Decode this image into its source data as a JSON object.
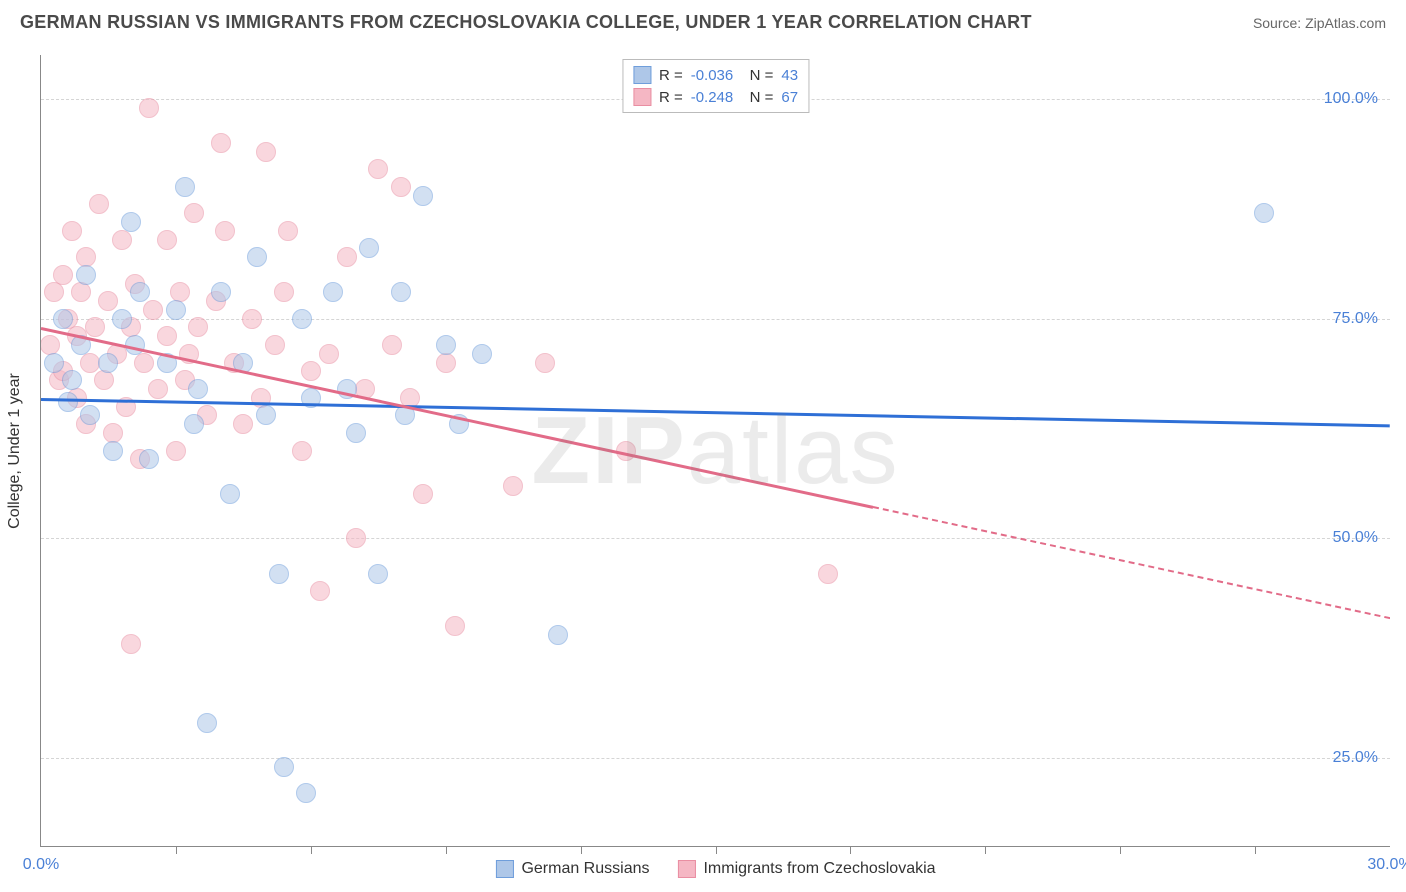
{
  "title": "GERMAN RUSSIAN VS IMMIGRANTS FROM CZECHOSLOVAKIA COLLEGE, UNDER 1 YEAR CORRELATION CHART",
  "source": "Source: ZipAtlas.com",
  "chart": {
    "type": "scatter",
    "watermark": "ZIPatlas",
    "background_color": "#ffffff",
    "grid_color": "#d5d5d5",
    "axis_color": "#888888",
    "tick_label_color": "#4a80d6",
    "y_axis_title": "College, Under 1 year",
    "xlim": [
      0,
      30
    ],
    "ylim": [
      15,
      105
    ],
    "x_ticks_major": [
      0,
      30
    ],
    "x_ticks_minor": [
      3,
      6,
      9,
      12,
      15,
      18,
      21,
      24,
      27
    ],
    "x_tick_labels": {
      "0": "0.0%",
      "30": "30.0%"
    },
    "y_gridlines": [
      25,
      50,
      75,
      100
    ],
    "y_tick_labels": {
      "25": "25.0%",
      "50": "50.0%",
      "75": "75.0%",
      "100": "100.0%"
    },
    "marker_radius": 10,
    "marker_opacity": 0.55,
    "series": [
      {
        "name": "German Russians",
        "fill_color": "#aec7e8",
        "stroke_color": "#6f9edb",
        "trend_color": "#2e6fd6",
        "R": "-0.036",
        "N": "43",
        "trend": {
          "x1": 0,
          "y1": 66,
          "x2": 30,
          "y2": 63,
          "solid_until_x": 30
        },
        "points": [
          [
            0.3,
            70
          ],
          [
            0.5,
            75
          ],
          [
            0.6,
            65.5
          ],
          [
            0.7,
            68
          ],
          [
            0.9,
            72
          ],
          [
            1.0,
            80
          ],
          [
            1.1,
            64
          ],
          [
            1.5,
            70
          ],
          [
            1.6,
            60
          ],
          [
            1.8,
            75
          ],
          [
            2.0,
            86
          ],
          [
            2.1,
            72
          ],
          [
            2.2,
            78
          ],
          [
            2.4,
            59
          ],
          [
            2.8,
            70
          ],
          [
            3.0,
            76
          ],
          [
            3.2,
            90
          ],
          [
            3.4,
            63
          ],
          [
            3.5,
            67
          ],
          [
            3.7,
            29
          ],
          [
            4.0,
            78
          ],
          [
            4.2,
            55
          ],
          [
            4.5,
            70
          ],
          [
            4.8,
            82
          ],
          [
            5.0,
            64
          ],
          [
            5.3,
            46
          ],
          [
            5.4,
            24
          ],
          [
            5.8,
            75
          ],
          [
            5.9,
            21
          ],
          [
            6.0,
            66
          ],
          [
            6.5,
            78
          ],
          [
            6.8,
            67
          ],
          [
            7.0,
            62
          ],
          [
            7.3,
            83
          ],
          [
            7.5,
            46
          ],
          [
            8.0,
            78
          ],
          [
            8.1,
            64
          ],
          [
            8.5,
            89
          ],
          [
            9.0,
            72
          ],
          [
            9.3,
            63
          ],
          [
            9.8,
            71
          ],
          [
            11.5,
            39
          ],
          [
            27.2,
            87
          ]
        ]
      },
      {
        "name": "Immigrants from Czechoslovakia",
        "fill_color": "#f5b7c4",
        "stroke_color": "#e98ea2",
        "trend_color": "#e26b88",
        "R": "-0.248",
        "N": "67",
        "trend": {
          "x1": 0,
          "y1": 74,
          "x2": 30,
          "y2": 41,
          "solid_until_x": 18.5
        },
        "points": [
          [
            0.2,
            72
          ],
          [
            0.3,
            78
          ],
          [
            0.4,
            68
          ],
          [
            0.5,
            80
          ],
          [
            0.5,
            69
          ],
          [
            0.6,
            75
          ],
          [
            0.7,
            85
          ],
          [
            0.8,
            66
          ],
          [
            0.8,
            73
          ],
          [
            0.9,
            78
          ],
          [
            1.0,
            63
          ],
          [
            1.0,
            82
          ],
          [
            1.1,
            70
          ],
          [
            1.2,
            74
          ],
          [
            1.3,
            88
          ],
          [
            1.4,
            68
          ],
          [
            1.5,
            77
          ],
          [
            1.6,
            62
          ],
          [
            1.7,
            71
          ],
          [
            1.8,
            84
          ],
          [
            1.9,
            65
          ],
          [
            2.0,
            74
          ],
          [
            2.0,
            38
          ],
          [
            2.1,
            79
          ],
          [
            2.2,
            59
          ],
          [
            2.3,
            70
          ],
          [
            2.4,
            99
          ],
          [
            2.5,
            76
          ],
          [
            2.6,
            67
          ],
          [
            2.8,
            73
          ],
          [
            2.8,
            84
          ],
          [
            3.0,
            60
          ],
          [
            3.1,
            78
          ],
          [
            3.2,
            68
          ],
          [
            3.3,
            71
          ],
          [
            3.4,
            87
          ],
          [
            3.5,
            74
          ],
          [
            3.7,
            64
          ],
          [
            3.9,
            77
          ],
          [
            4.0,
            95
          ],
          [
            4.1,
            85
          ],
          [
            4.3,
            70
          ],
          [
            4.5,
            63
          ],
          [
            4.7,
            75
          ],
          [
            4.9,
            66
          ],
          [
            5.0,
            94
          ],
          [
            5.2,
            72
          ],
          [
            5.4,
            78
          ],
          [
            5.5,
            85
          ],
          [
            5.8,
            60
          ],
          [
            6.0,
            69
          ],
          [
            6.2,
            44
          ],
          [
            6.4,
            71
          ],
          [
            6.8,
            82
          ],
          [
            7.0,
            50
          ],
          [
            7.2,
            67
          ],
          [
            7.5,
            92
          ],
          [
            7.8,
            72
          ],
          [
            8.0,
            90
          ],
          [
            8.2,
            66
          ],
          [
            8.5,
            55
          ],
          [
            9.0,
            70
          ],
          [
            9.2,
            40
          ],
          [
            10.5,
            56
          ],
          [
            11.2,
            70
          ],
          [
            13.0,
            60
          ],
          [
            17.5,
            46
          ]
        ]
      }
    ]
  },
  "legend_bottom": [
    {
      "label": "German Russians",
      "fill": "#aec7e8",
      "stroke": "#6f9edb"
    },
    {
      "label": "Immigrants from Czechoslovakia",
      "fill": "#f5b7c4",
      "stroke": "#e98ea2"
    }
  ]
}
